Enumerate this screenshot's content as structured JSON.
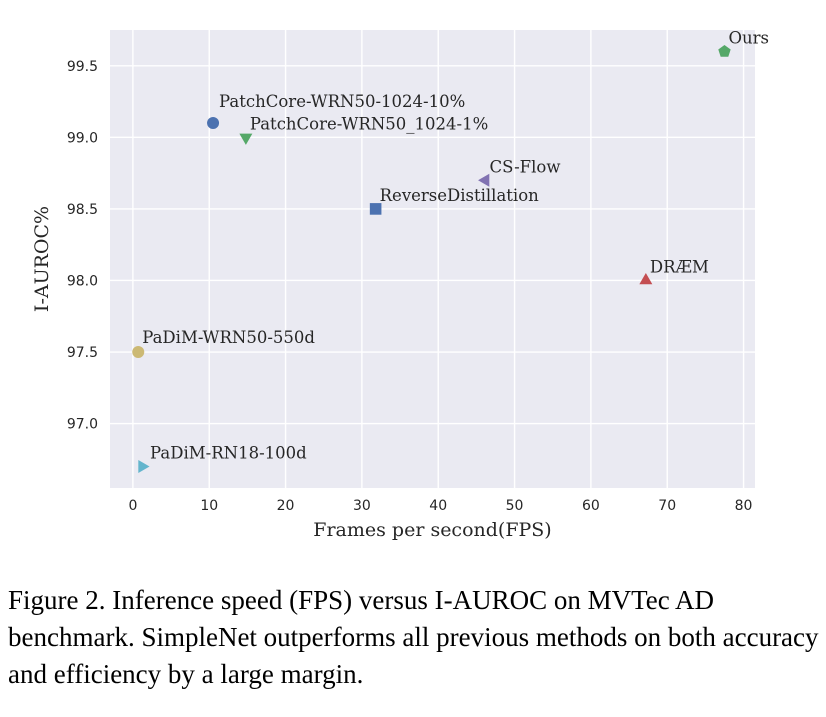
{
  "chart_data": {
    "type": "scatter",
    "xlabel": "Frames per second(FPS)",
    "ylabel": "I-AUROC%",
    "xlim": [
      -3,
      81.5
    ],
    "ylim": [
      96.55,
      99.75
    ],
    "xticks": [
      0,
      10,
      20,
      30,
      40,
      50,
      60,
      70,
      80
    ],
    "yticks": [
      97.0,
      97.5,
      98.0,
      98.5,
      99.0,
      99.5
    ],
    "ytick_labels": [
      "97.0",
      "97.5",
      "98.0",
      "98.5",
      "99.0",
      "99.5"
    ],
    "grid": true,
    "background": "#eaeaf2",
    "points": [
      {
        "label": "Ours",
        "x": 77.5,
        "y": 99.6,
        "marker": "pentagon",
        "color": "#55a868"
      },
      {
        "label": "PatchCore-WRN50-1024-10%",
        "x": 10.5,
        "y": 99.1,
        "marker": "circle",
        "color": "#4c72b0"
      },
      {
        "label": "PatchCore-WRN50_1024-1%",
        "x": 14.8,
        "y": 99.0,
        "marker": "triangle-down",
        "color": "#55a868"
      },
      {
        "label": "CS-Flow",
        "x": 46.2,
        "y": 98.7,
        "marker": "triangle-left",
        "color": "#8172b2"
      },
      {
        "label": "ReverseDistillation",
        "x": 31.8,
        "y": 98.5,
        "marker": "square",
        "color": "#4c72b0"
      },
      {
        "label": "DRÆM",
        "x": 67.2,
        "y": 98.0,
        "marker": "triangle-up",
        "color": "#c44e52"
      },
      {
        "label": "PaDiM-WRN50-550d",
        "x": 0.7,
        "y": 97.5,
        "marker": "circle",
        "color": "#ccb974"
      },
      {
        "label": "PaDiM-RN18-100d",
        "x": 1.2,
        "y": 96.7,
        "marker": "triangle-right",
        "color": "#64b5cd"
      }
    ]
  },
  "caption": "Figure 2. Inference speed (FPS) versus I-AUROC on MVTec AD benchmark. SimpleNet outperforms all previous methods on both accuracy and efficiency by a large margin."
}
